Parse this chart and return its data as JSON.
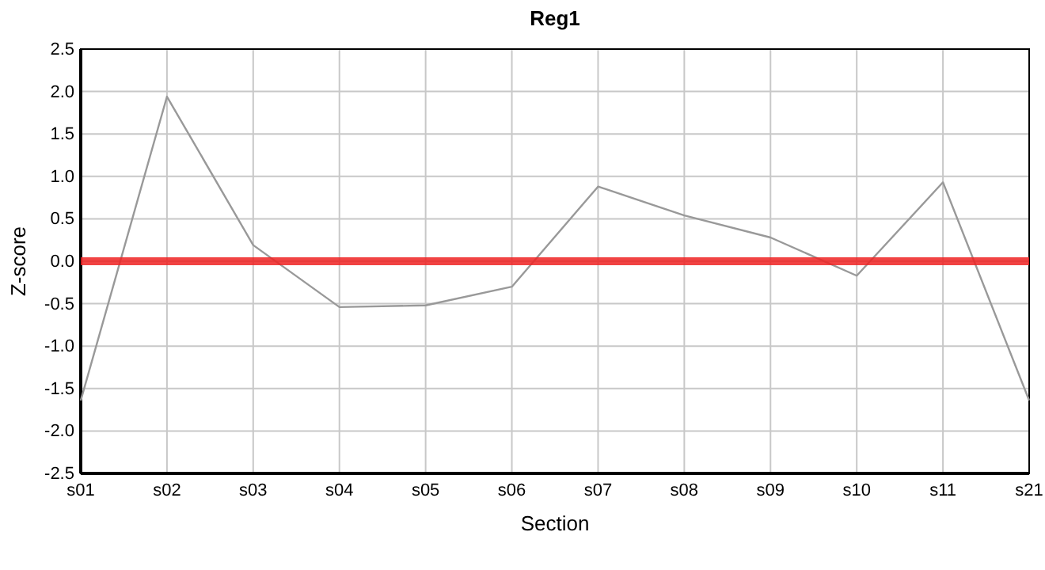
{
  "chart_data": {
    "type": "line",
    "title": "Reg1",
    "xlabel": "Section",
    "ylabel": "Z-score",
    "categories": [
      "s01",
      "s02",
      "s03",
      "s04",
      "s05",
      "s06",
      "s07",
      "s08",
      "s09",
      "s10",
      "s11",
      "s21"
    ],
    "series": [
      {
        "color": "#999999",
        "values": [
          -1.64,
          1.94,
          0.19,
          -0.54,
          -0.52,
          -0.3,
          0.88,
          0.54,
          0.28,
          -0.17,
          0.93,
          -1.64
        ]
      }
    ],
    "ylim": [
      -2.5,
      2.5
    ],
    "yticks": [
      {
        "value": -2.5,
        "label": "-2.5"
      },
      {
        "value": -2,
        "label": "-2.0"
      },
      {
        "value": -1.5,
        "label": "-1.5"
      },
      {
        "value": -1,
        "label": "-1.0"
      },
      {
        "value": -0.5,
        "label": "-0.5"
      },
      {
        "value": 0,
        "label": "0.0"
      },
      {
        "value": 0.5,
        "label": "0.5"
      },
      {
        "value": 1,
        "label": "1.0"
      },
      {
        "value": 1.5,
        "label": "1.5"
      },
      {
        "value": 2,
        "label": "2.0"
      },
      {
        "value": 2.5,
        "label": "2.5"
      }
    ],
    "ref_lines": [
      {
        "axis": "y",
        "value": 0,
        "color": "#ee2222"
      }
    ],
    "grid": true,
    "marker": "none",
    "line_style": "solid"
  }
}
